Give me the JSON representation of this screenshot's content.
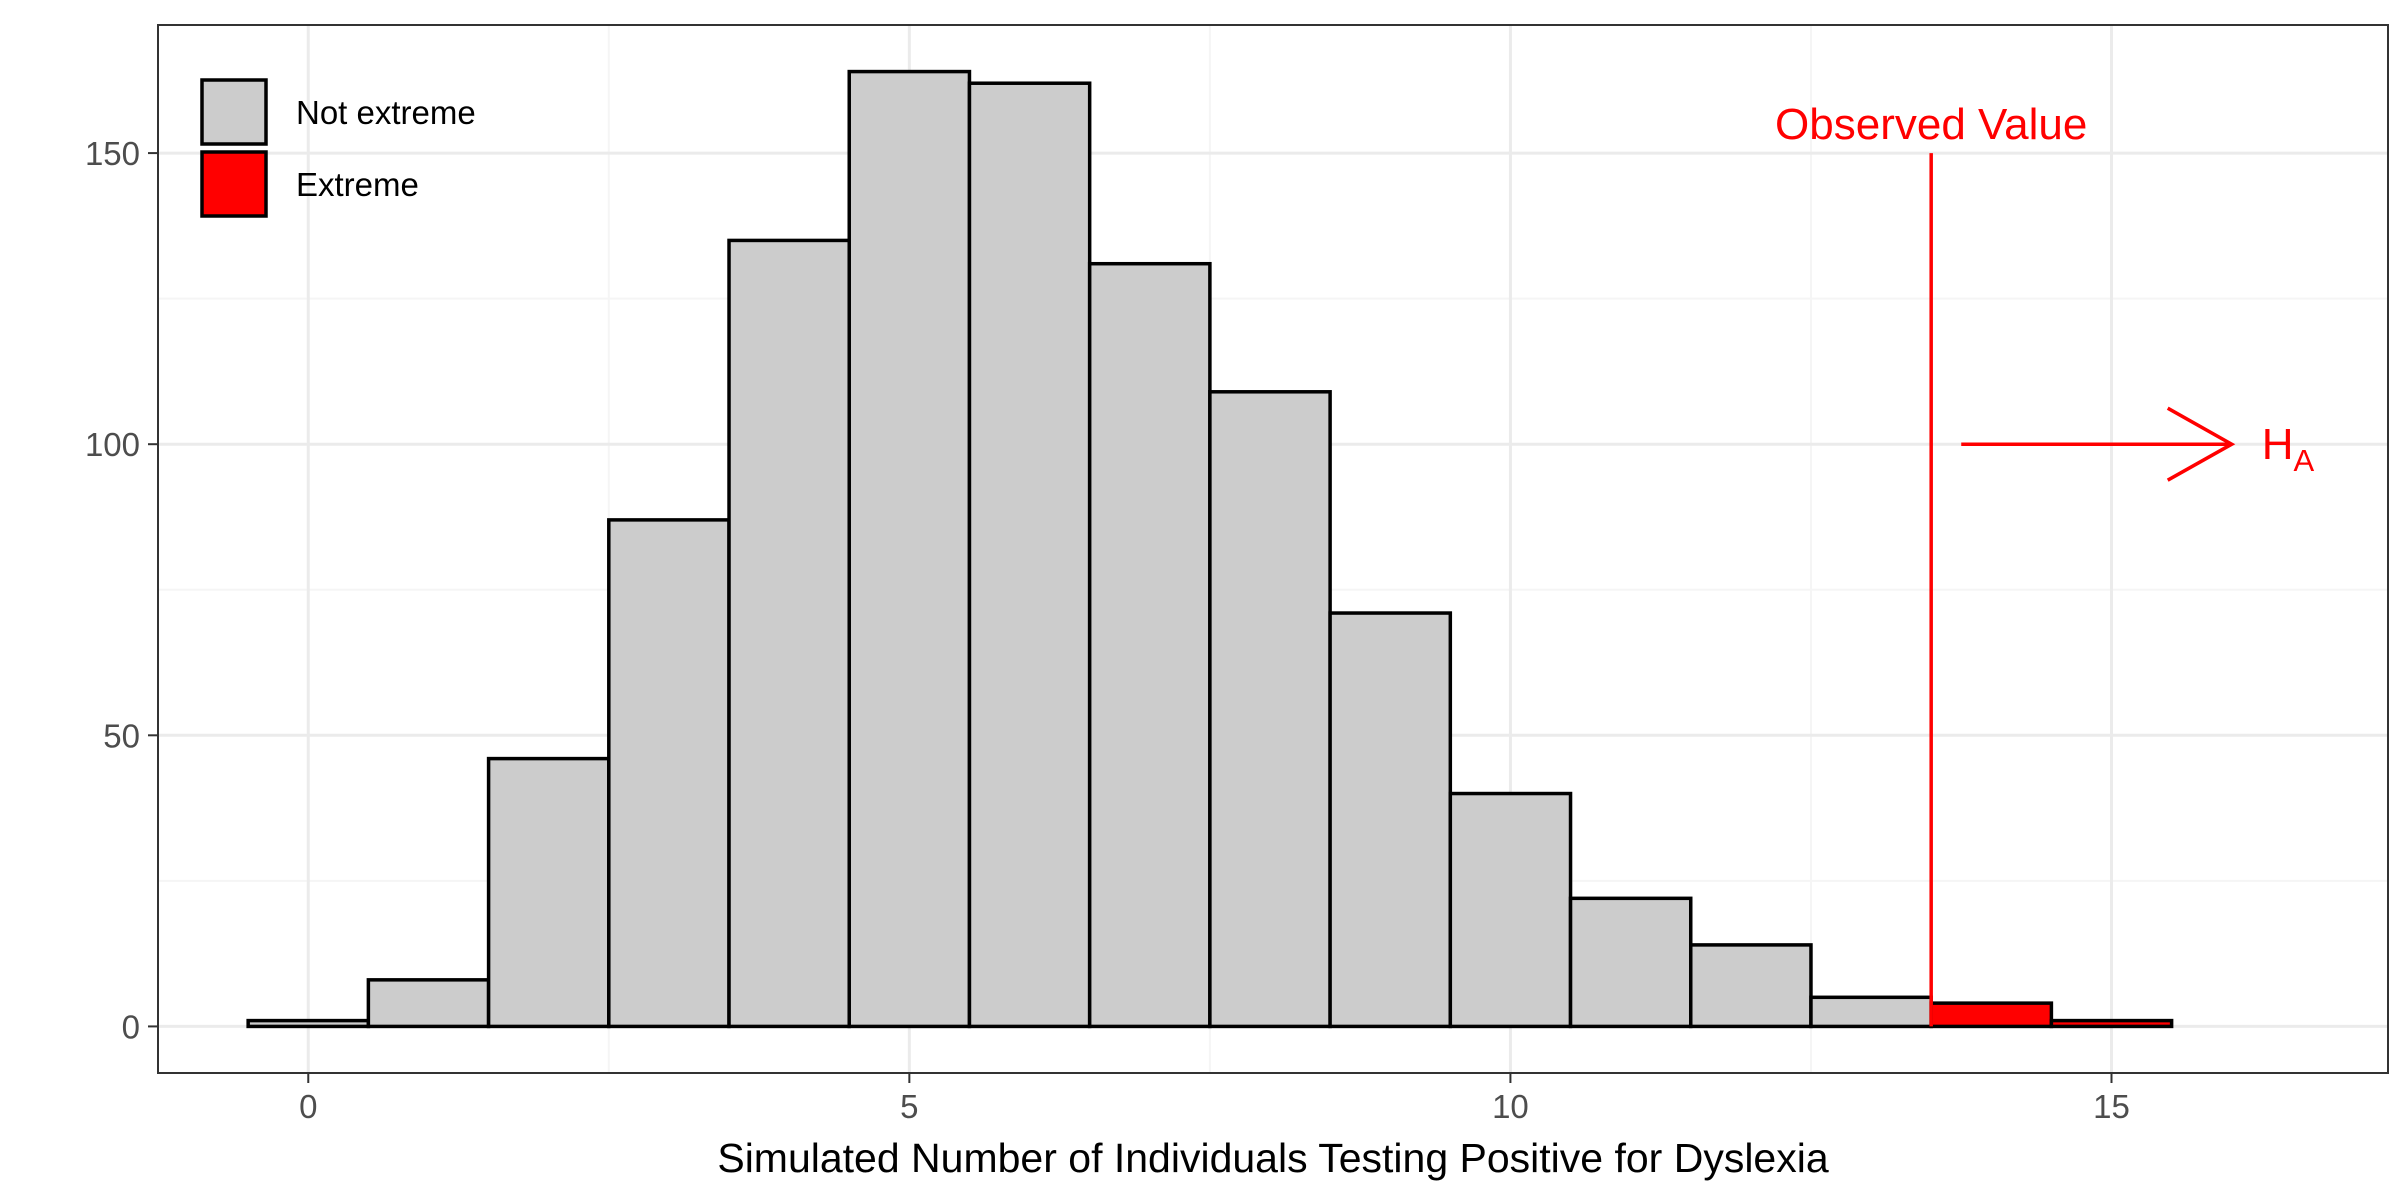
{
  "chart_data": {
    "type": "bar",
    "subtype": "histogram",
    "xlabel": "Simulated Number of Individuals Testing Positive for Dyslexia",
    "ylabel": "",
    "title": "",
    "xlim": [
      -1.25,
      17.3
    ],
    "ylim": [
      -8,
      172
    ],
    "x_ticks": [
      0,
      5,
      10,
      15
    ],
    "x_minor_ticks": [
      2.5,
      7.5,
      12.5
    ],
    "y_ticks": [
      0,
      50,
      100,
      150
    ],
    "y_minor_ticks": [
      25,
      75,
      125
    ],
    "grid": true,
    "legend_position": "top-left",
    "bins": [
      {
        "x": 0,
        "count": 1,
        "group": "Not extreme"
      },
      {
        "x": 1,
        "count": 8,
        "group": "Not extreme"
      },
      {
        "x": 2,
        "count": 46,
        "group": "Not extreme"
      },
      {
        "x": 3,
        "count": 87,
        "group": "Not extreme"
      },
      {
        "x": 4,
        "count": 135,
        "group": "Not extreme"
      },
      {
        "x": 5,
        "count": 164,
        "group": "Not extreme"
      },
      {
        "x": 6,
        "count": 162,
        "group": "Not extreme"
      },
      {
        "x": 7,
        "count": 131,
        "group": "Not extreme"
      },
      {
        "x": 8,
        "count": 109,
        "group": "Not extreme"
      },
      {
        "x": 9,
        "count": 71,
        "group": "Not extreme"
      },
      {
        "x": 10,
        "count": 40,
        "group": "Not extreme"
      },
      {
        "x": 11,
        "count": 22,
        "group": "Not extreme"
      },
      {
        "x": 12,
        "count": 14,
        "group": "Not extreme"
      },
      {
        "x": 13,
        "count": 5,
        "group": "Not extreme"
      },
      {
        "x": 14,
        "count": 4,
        "group": "Extreme"
      },
      {
        "x": 15,
        "count": 1,
        "group": "Extreme"
      },
      {
        "x": 16,
        "count": 0,
        "group": "Extreme"
      }
    ],
    "series": [
      {
        "name": "Not extreme",
        "color": "#cccccc"
      },
      {
        "name": "Extreme",
        "color": "#ff0000"
      }
    ],
    "observed_value": {
      "x": 13.5,
      "y_top": 150,
      "label": "Observed Value",
      "color": "#ff0000"
    },
    "alternative_arrow": {
      "x_start": 13.75,
      "x_end": 16,
      "y": 100,
      "label_main": "H",
      "label_sub": "A",
      "color": "#ff0000"
    }
  },
  "colors": {
    "panel_border": "#333333",
    "grid_major": "#ebebeb",
    "grid_minor": "#f5f5f5",
    "bar_outline": "#000000"
  }
}
